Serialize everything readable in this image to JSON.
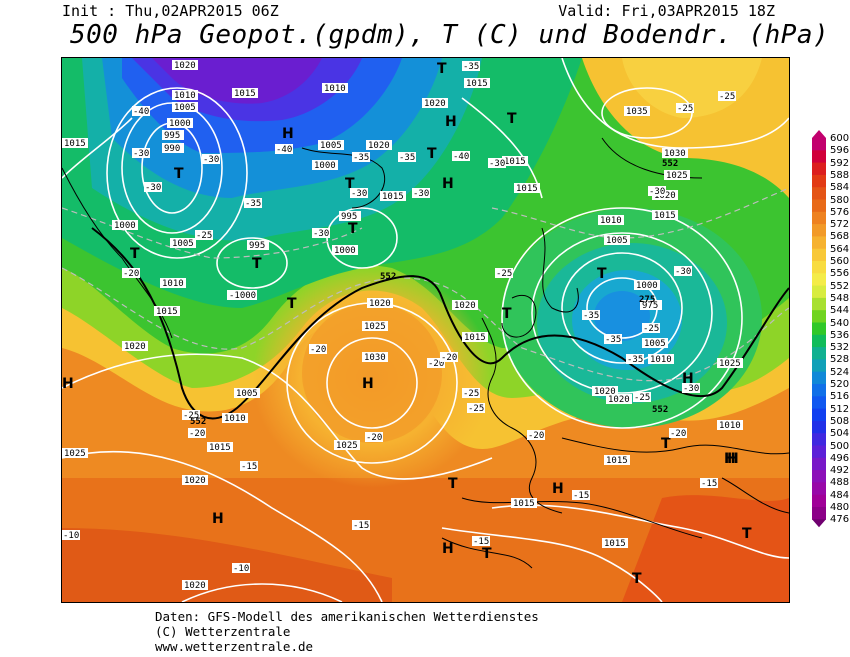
{
  "header": {
    "init": "Init : Thu,02APR2015 06Z",
    "valid": "Valid: Fri,03APR2015 18Z",
    "title": "500 hPa Geopot.(gpdm), T (C) und Bodendr. (hPa)"
  },
  "footer": {
    "line1": "Daten: GFS-Modell des amerikanischen Wetterdienstes",
    "line2": "(C) Wetterzentrale",
    "line3": "www.wetterzentrale.de"
  },
  "legend": {
    "values": [
      600,
      596,
      592,
      588,
      584,
      580,
      576,
      572,
      568,
      564,
      560,
      556,
      552,
      548,
      544,
      540,
      536,
      532,
      528,
      524,
      520,
      516,
      512,
      508,
      504,
      500,
      496,
      492,
      488,
      484,
      480,
      476
    ],
    "colors": [
      "#c2006e",
      "#d0003a",
      "#dc1e1e",
      "#e23a14",
      "#e45416",
      "#e86a18",
      "#ee8220",
      "#f29a28",
      "#f6b230",
      "#f8c838",
      "#f8dc40",
      "#f4ec48",
      "#d8ec40",
      "#a8e030",
      "#70d420",
      "#30c828",
      "#10bc5a",
      "#10b090",
      "#10a0b8",
      "#1088d8",
      "#1070e8",
      "#1058f0",
      "#1040f0",
      "#2030e8",
      "#4028e0",
      "#5c20d8",
      "#7818c8",
      "#8c10b8",
      "#9808a8",
      "#a00098",
      "#8c0088",
      "#700070"
    ]
  },
  "map": {
    "labels": {
      "highs": [
        "H",
        "H",
        "H",
        "H",
        "H",
        "H",
        "H",
        "H",
        "H",
        "H",
        "H",
        "H",
        "H",
        "H",
        "H",
        "H",
        "H"
      ],
      "lows": [
        "T",
        "T",
        "T",
        "T",
        "T",
        "T",
        "T",
        "T",
        "T",
        "T",
        "T",
        "T",
        "T",
        "T",
        "T",
        "T",
        "T",
        "T",
        "T",
        "T",
        "T",
        "T",
        "T"
      ],
      "isobars": [
        "1020",
        "1010",
        "1005",
        "1000",
        "995",
        "990",
        "1015",
        "1010",
        "1015",
        "1020",
        "1005",
        "1010",
        "1000",
        "1005",
        "995",
        "1015",
        "1000",
        "1020",
        "1025",
        "1030",
        "1025",
        "1005",
        "1010",
        "1015",
        "1020",
        "1025",
        "1020",
        "1020",
        "1015",
        "1010",
        "1005",
        "1000",
        "975",
        "1005",
        "1010",
        "1015",
        "1025",
        "1030",
        "1035",
        "1025",
        "1020",
        "1015",
        "1010",
        "1015",
        "1015",
        "1015",
        "1010",
        "1015",
        "1020",
        "1025",
        "1020",
        "1025",
        "1020",
        "1000",
        "1010"
      ],
      "temps": [
        "-35",
        "-30",
        "-30",
        "-30",
        "-30",
        "-35",
        "-35",
        "-40",
        "-35",
        "-40",
        "-35",
        "-30",
        "-25",
        "-30",
        "-30",
        "-25",
        "-20",
        "-25",
        "-20",
        "-20",
        "-25",
        "-25",
        "-20",
        "-15",
        "-15",
        "-15",
        "-10",
        "-10",
        "-10",
        "-20",
        "-15",
        "-20",
        "-20",
        "-25",
        "-25",
        "-35",
        "-35",
        "-30",
        "-25",
        "-20",
        "-25",
        "-20",
        "-25",
        "-15"
      ],
      "geopot": [
        "552",
        "552",
        "552",
        "552",
        "552"
      ]
    }
  }
}
